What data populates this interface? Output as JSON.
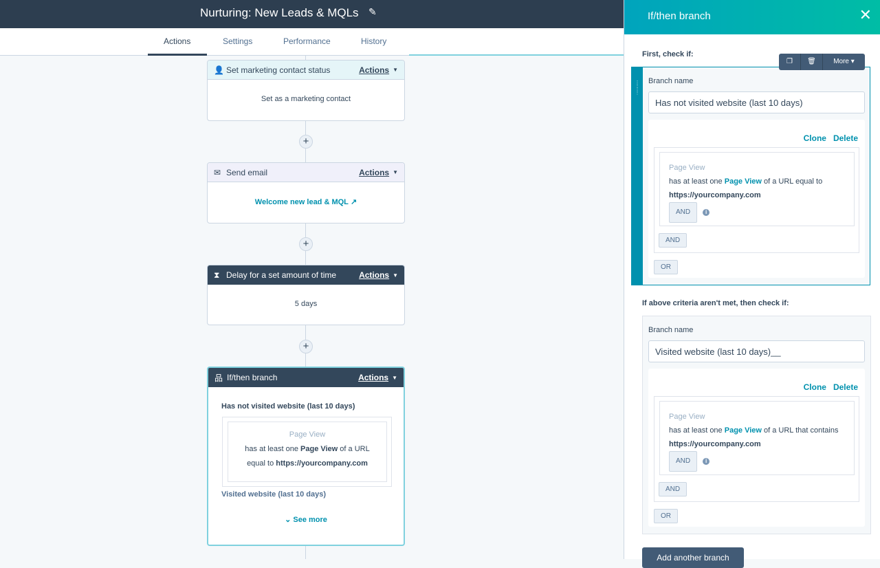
{
  "header": {
    "title": "Nurturing: New Leads & MQLs",
    "edit_icon": "pencil-icon"
  },
  "tabs": [
    {
      "label": "Actions",
      "active": true
    },
    {
      "label": "Settings"
    },
    {
      "label": "Performance"
    },
    {
      "label": "History"
    }
  ],
  "workflow": {
    "actions_label": "Actions",
    "cards": [
      {
        "icon": "person-icon",
        "title": "Set marketing contact status",
        "body": "Set as a marketing contact"
      },
      {
        "icon": "envelope-icon",
        "title": "Send email",
        "body": "Welcome new lead & MQL"
      },
      {
        "icon": "hourglass-icon",
        "title": "Delay for a set amount of time",
        "body": "5 days"
      },
      {
        "icon": "branch-icon",
        "title": "If/then branch",
        "branch1": "Has not visited website (last 10 days)",
        "filter_type": "Page View",
        "filter_pre": "has at least one",
        "filter_bold": "Page View",
        "filter_mid": "of a URL",
        "filter_mid2": "equal to",
        "filter_url": "https://yourcompany.com",
        "branch2": "Visited website (last 10 days)",
        "see_more": "See more"
      }
    ]
  },
  "panel": {
    "title": "If/then branch",
    "first_label": "First, check if:",
    "toolbar": {
      "more": "More"
    },
    "branch_name_label": "Branch name",
    "clone": "Clone",
    "delete": "Delete",
    "and": "AND",
    "or": "OR",
    "branches": [
      {
        "name": "Has not visited website (last 10 days)",
        "filter_type": "Page View",
        "pre": "has at least one",
        "link": "Page View",
        "post": "of a URL equal to",
        "url": "https://yourcompany.com"
      },
      {
        "name": "Visited website (last 10 days)__",
        "filter_type": "Page View",
        "pre": "has at least one",
        "link": "Page View",
        "post": "of a URL that contains",
        "url": "https://yourcompany.com"
      }
    ],
    "second_label": "If above criteria aren't met, then check if:",
    "add_branch": "Add another branch"
  },
  "colors": {
    "header": "#2d3e50",
    "accent": "#0091ae",
    "dark_card": "#33475b"
  }
}
